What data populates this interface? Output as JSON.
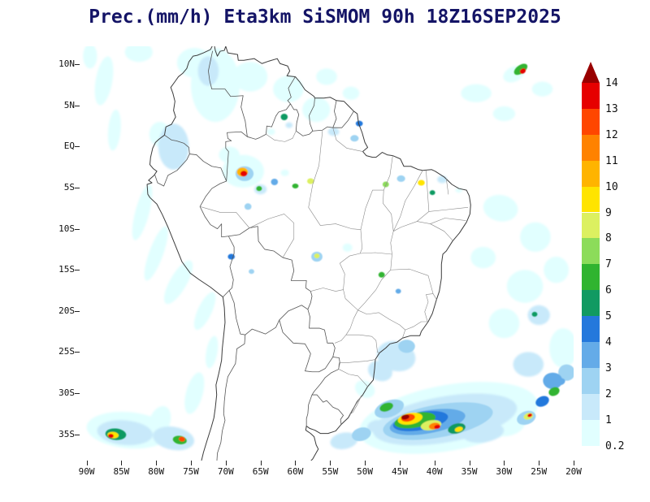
{
  "axes": {
    "lat_labels": [
      {
        "text": "10N",
        "value": 10
      },
      {
        "text": "5N",
        "value": 5
      },
      {
        "text": "EQ",
        "value": 0
      },
      {
        "text": "5S",
        "value": -5
      },
      {
        "text": "10S",
        "value": -10
      },
      {
        "text": "15S",
        "value": -15
      },
      {
        "text": "20S",
        "value": -20
      },
      {
        "text": "25S",
        "value": -25
      },
      {
        "text": "30S",
        "value": -30
      },
      {
        "text": "35S",
        "value": -35
      }
    ],
    "lon_labels": [
      {
        "text": "90W",
        "value": -90
      },
      {
        "text": "85W",
        "value": -85
      },
      {
        "text": "80W",
        "value": -80
      },
      {
        "text": "75W",
        "value": -75
      },
      {
        "text": "70W",
        "value": -70
      },
      {
        "text": "65W",
        "value": -65
      },
      {
        "text": "60W",
        "value": -60
      },
      {
        "text": "55W",
        "value": -55
      },
      {
        "text": "50W",
        "value": -50
      },
      {
        "text": "45W",
        "value": -45
      },
      {
        "text": "40W",
        "value": -40
      },
      {
        "text": "35W",
        "value": -35
      },
      {
        "text": "30W",
        "value": -30
      },
      {
        "text": "25W",
        "value": -25
      },
      {
        "text": "20W",
        "value": -20
      }
    ]
  },
  "chart_data": {
    "type": "map",
    "title": "Prec.(mm/h) Eta3km SiSMOM 90h 18Z16SEP2025",
    "title_color": "#141466",
    "units": "mm/h",
    "colorbar": {
      "levels": [
        0.2,
        1,
        2,
        3,
        4,
        5,
        6,
        7,
        8,
        9,
        10,
        11,
        12,
        13,
        14
      ],
      "segment_colors": [
        "#E1FFFF",
        "#C8E9FA",
        "#9ED3F2",
        "#64ABE8",
        "#2478DC",
        "#119A62",
        "#30B430",
        "#8CDC5A",
        "#DCF060",
        "#FFE400",
        "#FFB400",
        "#FF8200",
        "#FF4600",
        "#E60000"
      ],
      "over_color": "#990000"
    },
    "cells": [
      [
        -71.5,
        7.5,
        3.5,
        4.5,
        0,
        0.2
      ],
      [
        -74.5,
        10.2,
        2.5,
        1.8,
        0,
        0.2
      ],
      [
        -72.5,
        9.2,
        1.5,
        1.8,
        0,
        1
      ],
      [
        -66.5,
        8.5,
        2.5,
        1.8,
        0,
        0.2
      ],
      [
        -61.0,
        7.0,
        2.2,
        1.6,
        0,
        0.2
      ],
      [
        -57.0,
        4.5,
        2.0,
        1.5,
        0,
        0.2
      ],
      [
        -55.5,
        8.5,
        1.5,
        1.0,
        0,
        0.2
      ],
      [
        -52.0,
        6.5,
        1.2,
        0.8,
        0,
        0.2
      ],
      [
        -87.5,
        8.0,
        1.2,
        3.0,
        10,
        0.2
      ],
      [
        -89.5,
        11.0,
        1.0,
        1.5,
        0,
        0.2
      ],
      [
        -86.0,
        2.0,
        0.9,
        2.5,
        5,
        0.2
      ],
      [
        -82.5,
        11.5,
        2.0,
        1.2,
        0,
        0.2
      ],
      [
        -77.5,
        0.0,
        2.2,
        2.8,
        0,
        1
      ],
      [
        -79.5,
        1.5,
        1.5,
        1.5,
        0,
        0.2
      ],
      [
        -82.0,
        -8.0,
        1.0,
        3.5,
        15,
        0.2
      ],
      [
        -80.0,
        -13.0,
        1.0,
        3.5,
        20,
        0.2
      ],
      [
        -76.8,
        -16.5,
        1.2,
        3.0,
        30,
        0.2
      ],
      [
        -73.0,
        -20.0,
        1.0,
        2.5,
        25,
        0.2
      ],
      [
        -67.5,
        -3.0,
        3.0,
        2.0,
        0,
        0.2
      ],
      [
        -67.3,
        -3.3,
        1.3,
        0.9,
        0,
        2
      ],
      [
        -67.6,
        -3.1,
        0.8,
        0.55,
        0,
        10
      ],
      [
        -67.4,
        -3.3,
        0.5,
        0.35,
        0,
        13
      ],
      [
        -69.5,
        -1.0,
        1.5,
        1.0,
        0,
        0.2
      ],
      [
        -65.0,
        -5.2,
        0.9,
        0.6,
        0,
        1
      ],
      [
        -65.2,
        -5.1,
        0.4,
        0.3,
        0,
        6
      ],
      [
        -63.0,
        -4.3,
        0.5,
        0.4,
        0,
        3
      ],
      [
        -61.5,
        -3.2,
        0.6,
        0.4,
        0,
        0.2
      ],
      [
        -60.0,
        -4.8,
        0.45,
        0.3,
        0,
        6
      ],
      [
        -57.8,
        -4.2,
        0.5,
        0.35,
        0,
        8
      ],
      [
        -66.8,
        -7.3,
        0.5,
        0.4,
        0,
        2
      ],
      [
        -61.6,
        3.6,
        0.5,
        0.4,
        0,
        5
      ],
      [
        -60.9,
        2.6,
        0.5,
        0.35,
        0,
        1
      ],
      [
        -63.5,
        1.8,
        0.6,
        0.4,
        0,
        0.2
      ],
      [
        -54.5,
        1.8,
        0.8,
        0.5,
        0,
        1
      ],
      [
        -51.5,
        1.0,
        0.6,
        0.4,
        0,
        2
      ],
      [
        -50.8,
        2.8,
        0.5,
        0.35,
        0,
        4
      ],
      [
        -47.0,
        -4.6,
        0.45,
        0.35,
        0,
        7
      ],
      [
        -44.8,
        -3.9,
        0.6,
        0.4,
        0,
        2
      ],
      [
        -41.9,
        -4.4,
        0.5,
        0.35,
        0,
        9
      ],
      [
        -40.3,
        -5.6,
        0.4,
        0.3,
        0,
        5
      ],
      [
        -38.9,
        -4.0,
        0.7,
        0.45,
        0,
        1
      ],
      [
        -36.5,
        -5.3,
        0.5,
        0.3,
        0,
        0.2
      ],
      [
        -27.6,
        9.4,
        1.1,
        0.5,
        -35,
        6
      ],
      [
        -27.3,
        9.2,
        0.45,
        0.3,
        -35,
        13
      ],
      [
        -28.6,
        8.8,
        1.6,
        0.9,
        -25,
        0.2
      ],
      [
        -24.5,
        7.0,
        1.5,
        0.9,
        0,
        0.2
      ],
      [
        -34.0,
        6.5,
        2.2,
        1.1,
        0,
        0.2
      ],
      [
        -30.0,
        4.0,
        1.6,
        0.9,
        0,
        0.2
      ],
      [
        -56.9,
        -13.4,
        0.8,
        0.6,
        0,
        2
      ],
      [
        -56.9,
        -13.3,
        0.4,
        0.3,
        0,
        8
      ],
      [
        -52.5,
        -12.3,
        0.7,
        0.5,
        0,
        0.2
      ],
      [
        -47.6,
        -15.6,
        0.45,
        0.35,
        0,
        6
      ],
      [
        -45.2,
        -17.6,
        0.4,
        0.3,
        0,
        3
      ],
      [
        -69.2,
        -13.4,
        0.5,
        0.35,
        0,
        4
      ],
      [
        -66.3,
        -15.2,
        0.4,
        0.3,
        0,
        2
      ],
      [
        -30.5,
        -7.5,
        2.5,
        1.6,
        10,
        0.2
      ],
      [
        -25.5,
        -11.0,
        2.2,
        1.8,
        0,
        0.2
      ],
      [
        -33.0,
        -13.5,
        1.8,
        1.3,
        0,
        0.2
      ],
      [
        -27.0,
        -17.0,
        2.6,
        2.0,
        0,
        0.2
      ],
      [
        -22.5,
        -15.0,
        1.8,
        1.6,
        0,
        0.2
      ],
      [
        -30.0,
        -21.5,
        2.2,
        1.8,
        0,
        0.2
      ],
      [
        -25.0,
        -20.5,
        1.6,
        1.2,
        0,
        1
      ],
      [
        -25.6,
        -20.4,
        0.4,
        0.3,
        0,
        5
      ],
      [
        -21.5,
        -24.5,
        2.0,
        2.4,
        0,
        0.2
      ],
      [
        -26.5,
        -26.5,
        2.2,
        1.5,
        0,
        1
      ],
      [
        -23.0,
        -28.5,
        1.4,
        1.0,
        0,
        3
      ],
      [
        -21.0,
        -27.5,
        1.2,
        1.0,
        0,
        2
      ],
      [
        -45.5,
        -25.5,
        2.8,
        1.8,
        15,
        1
      ],
      [
        -44.0,
        -24.3,
        1.2,
        0.8,
        0,
        2
      ],
      [
        -47.8,
        -27.3,
        1.8,
        1.2,
        20,
        1
      ],
      [
        -50.0,
        -29.5,
        1.5,
        1.0,
        30,
        0.2
      ],
      [
        -38.0,
        -33.0,
        13.0,
        4.0,
        -10,
        0.2
      ],
      [
        -38.5,
        -33.2,
        10.5,
        2.8,
        -10,
        1
      ],
      [
        -39.5,
        -33.4,
        8.0,
        2.0,
        -10,
        2
      ],
      [
        -41.0,
        -33.5,
        5.5,
        1.4,
        -10,
        3
      ],
      [
        -42.0,
        -33.4,
        4.0,
        1.1,
        -10,
        4
      ],
      [
        -42.8,
        -33.3,
        3.0,
        0.9,
        -10,
        6
      ],
      [
        -43.5,
        -33.1,
        1.8,
        0.7,
        -10,
        9
      ],
      [
        -43.8,
        -33.0,
        1.0,
        0.45,
        -10,
        12
      ],
      [
        -44.2,
        -32.9,
        0.6,
        0.3,
        -10,
        14
      ],
      [
        -40.5,
        -33.9,
        1.5,
        0.6,
        -10,
        8
      ],
      [
        -40.0,
        -34.0,
        0.8,
        0.4,
        -10,
        11
      ],
      [
        -39.6,
        -34.1,
        0.45,
        0.25,
        -10,
        13
      ],
      [
        -36.8,
        -34.3,
        1.3,
        0.6,
        -15,
        5
      ],
      [
        -36.5,
        -34.4,
        0.6,
        0.3,
        -15,
        9
      ],
      [
        -46.5,
        -31.9,
        2.2,
        1.0,
        -20,
        2
      ],
      [
        -46.9,
        -31.7,
        1.0,
        0.5,
        -20,
        6
      ],
      [
        -33.0,
        -34.8,
        3.0,
        1.2,
        -8,
        1
      ],
      [
        -29.5,
        -34.0,
        2.5,
        1.2,
        -12,
        0.2
      ],
      [
        -26.8,
        -33.0,
        1.4,
        0.8,
        -20,
        2
      ],
      [
        -26.5,
        -32.8,
        0.7,
        0.4,
        -20,
        8
      ],
      [
        -26.3,
        -32.7,
        0.35,
        0.2,
        -20,
        13
      ],
      [
        -24.5,
        -31.0,
        1.0,
        0.6,
        -25,
        4
      ],
      [
        -22.8,
        -29.8,
        0.8,
        0.5,
        -25,
        6
      ],
      [
        -21.8,
        -28.6,
        0.6,
        0.4,
        -25,
        3
      ],
      [
        -20.8,
        -27.6,
        0.5,
        0.35,
        -25,
        2
      ],
      [
        -53.0,
        -35.8,
        2.0,
        1.0,
        -10,
        1
      ],
      [
        -50.5,
        -35.0,
        1.4,
        0.8,
        -15,
        2
      ],
      [
        -48.5,
        -34.0,
        1.2,
        0.7,
        -20,
        1
      ],
      [
        -84.0,
        -34.5,
        6.0,
        2.2,
        5,
        0.2
      ],
      [
        -84.5,
        -34.8,
        4.0,
        1.5,
        5,
        1
      ],
      [
        -85.8,
        -35.0,
        1.5,
        0.7,
        5,
        5
      ],
      [
        -86.2,
        -35.1,
        0.8,
        0.4,
        5,
        9
      ],
      [
        -86.5,
        -35.2,
        0.4,
        0.25,
        5,
        13
      ],
      [
        -77.5,
        -35.5,
        3.0,
        1.4,
        10,
        1
      ],
      [
        -76.6,
        -35.7,
        1.0,
        0.5,
        10,
        6
      ],
      [
        -76.3,
        -35.6,
        0.45,
        0.3,
        10,
        12
      ],
      [
        -79.5,
        -33.5,
        1.5,
        2.0,
        20,
        0.2
      ],
      [
        -74.5,
        -30.0,
        1.2,
        2.6,
        15,
        0.2
      ],
      [
        -72.0,
        -25.0,
        0.8,
        2.0,
        10,
        0.2
      ]
    ]
  }
}
